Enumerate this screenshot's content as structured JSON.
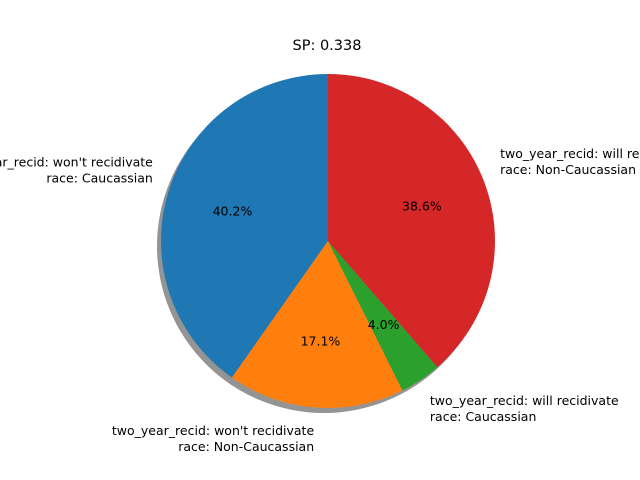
{
  "chart_data": {
    "type": "pie",
    "title": "SP: 0.338",
    "start_angle_deg": 90,
    "direction": "counterclockwise",
    "shadow": true,
    "slices": [
      {
        "label_lines": [
          "two_year_recid: won't recidivate",
          "race: Caucassian"
        ],
        "value": 40.2,
        "pct_label": "40.2%",
        "color": "#1f77b4"
      },
      {
        "label_lines": [
          "two_year_recid: won't recidivate",
          "race: Non-Caucassian"
        ],
        "value": 17.1,
        "pct_label": "17.1%",
        "color": "#ff7f0e"
      },
      {
        "label_lines": [
          "two_year_recid: will recidivate",
          "race: Caucassian"
        ],
        "value": 4.0,
        "pct_label": "4.0%",
        "color": "#2ca02c"
      },
      {
        "label_lines": [
          "two_year_recid: will recidivate",
          "race: Non-Caucassian"
        ],
        "value": 38.6,
        "pct_label": "38.6%",
        "color": "#d62728"
      }
    ]
  }
}
